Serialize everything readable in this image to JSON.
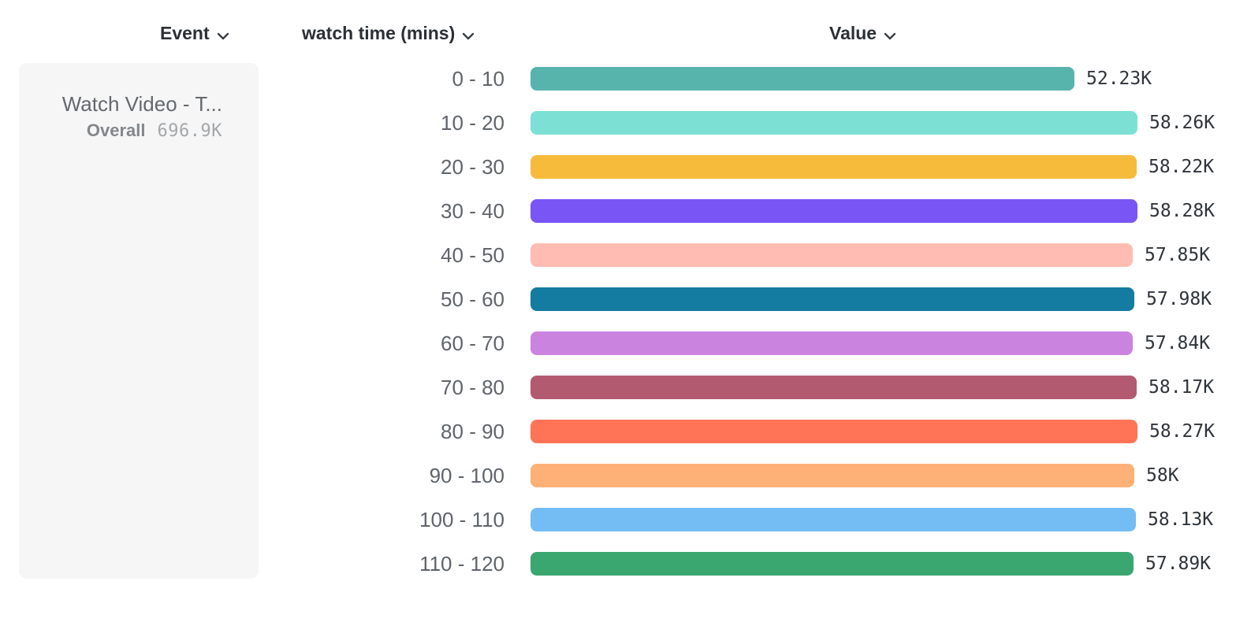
{
  "headers": {
    "event": "Event",
    "breakdown": "watch time (mins)",
    "value": "Value"
  },
  "event_panel": {
    "title": "Watch Video - T...",
    "overall_label": "Overall",
    "overall_value": "696.9K"
  },
  "chart_data": {
    "type": "bar",
    "orientation": "horizontal",
    "title": "",
    "xlabel": "Value",
    "ylabel": "watch time (mins)",
    "xlim": [
      0,
      58280
    ],
    "grid": false,
    "legend": "none",
    "categories": [
      "0 - 10",
      "10 - 20",
      "20 - 30",
      "30 - 40",
      "40 - 50",
      "50 - 60",
      "60 - 70",
      "70 - 80",
      "80 - 90",
      "90 - 100",
      "100 - 110",
      "110 - 120"
    ],
    "values": [
      52230,
      58260,
      58220,
      58280,
      57850,
      57980,
      57840,
      58170,
      58270,
      58000,
      58130,
      57890
    ],
    "value_labels": [
      "52.23K",
      "58.26K",
      "58.22K",
      "58.28K",
      "57.85K",
      "57.98K",
      "57.84K",
      "58.17K",
      "58.27K",
      "58K",
      "58.13K",
      "57.89K"
    ],
    "colors": [
      "#57b4ac",
      "#7ce1d4",
      "#f7bb3c",
      "#7a55f6",
      "#ffbcb2",
      "#147ba1",
      "#cb83e0",
      "#b25a70",
      "#ff7357",
      "#fdb176",
      "#74bdf4",
      "#3ba770"
    ]
  }
}
